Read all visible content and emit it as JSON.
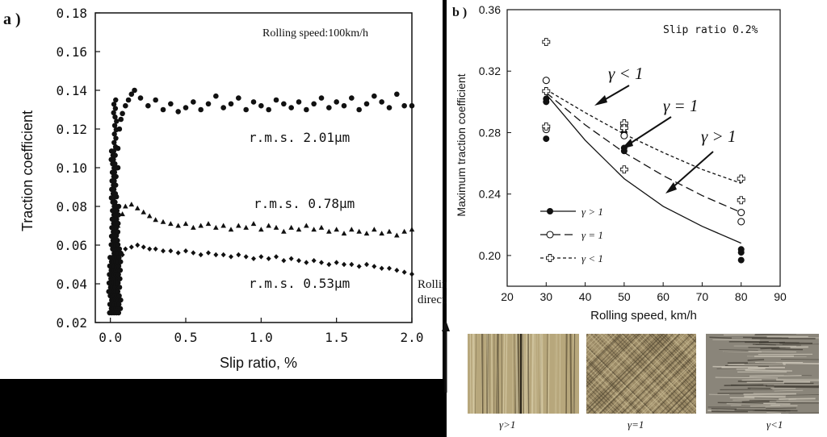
{
  "panel_a": {
    "label": "a )",
    "annotation": "Rolling speed:100km/h",
    "rms_labels": [
      "r.m.s. 2.01μm",
      "r.m.s. 0.78μm",
      "r.m.s. 0.53μm"
    ]
  },
  "panel_b": {
    "label": "b )",
    "annotation": "Slip ratio 0.2%",
    "arrow_labels": [
      "γ < 1",
      "γ = 1",
      "γ > 1"
    ]
  },
  "rolling_direction": [
    "Rolling",
    "direction"
  ],
  "photos": {
    "captions": [
      "γ>1",
      "γ=1",
      "γ<1"
    ],
    "colors": [
      "#b7a77c",
      "#9b8a66",
      "#8a857a"
    ]
  },
  "chart_data": [
    {
      "type": "scatter",
      "title": "",
      "xlabel": "Slip ratio, %",
      "ylabel": "Traction coefficient",
      "xlim": [
        -0.1,
        2.0
      ],
      "ylim": [
        0.02,
        0.18
      ],
      "xticks": [
        "0.0",
        "0.5",
        "1.0",
        "1.5",
        "2.0"
      ],
      "yticks": [
        "0.02",
        "0.04",
        "0.06",
        "0.08",
        "0.10",
        "0.12",
        "0.14",
        "0.16",
        "0.18"
      ],
      "series": [
        {
          "name": "r.m.s. 2.01μm",
          "marker": "circle",
          "points": [
            [
              0.02,
              0.028
            ],
            [
              0.03,
              0.045
            ],
            [
              0.04,
              0.065
            ],
            [
              0.04,
              0.085
            ],
            [
              0.05,
              0.1
            ],
            [
              0.05,
              0.11
            ],
            [
              0.06,
              0.12
            ],
            [
              0.07,
              0.125
            ],
            [
              0.08,
              0.128
            ],
            [
              0.1,
              0.132
            ],
            [
              0.12,
              0.135
            ],
            [
              0.14,
              0.138
            ],
            [
              0.16,
              0.14
            ],
            [
              0.2,
              0.136
            ],
            [
              0.25,
              0.132
            ],
            [
              0.3,
              0.135
            ],
            [
              0.35,
              0.13
            ],
            [
              0.4,
              0.133
            ],
            [
              0.45,
              0.129
            ],
            [
              0.5,
              0.131
            ],
            [
              0.55,
              0.134
            ],
            [
              0.6,
              0.13
            ],
            [
              0.65,
              0.133
            ],
            [
              0.7,
              0.137
            ],
            [
              0.75,
              0.131
            ],
            [
              0.8,
              0.133
            ],
            [
              0.85,
              0.136
            ],
            [
              0.9,
              0.13
            ],
            [
              0.95,
              0.134
            ],
            [
              1.0,
              0.132
            ],
            [
              1.05,
              0.13
            ],
            [
              1.1,
              0.135
            ],
            [
              1.15,
              0.133
            ],
            [
              1.2,
              0.131
            ],
            [
              1.25,
              0.134
            ],
            [
              1.3,
              0.13
            ],
            [
              1.35,
              0.133
            ],
            [
              1.4,
              0.136
            ],
            [
              1.45,
              0.131
            ],
            [
              1.5,
              0.134
            ],
            [
              1.55,
              0.132
            ],
            [
              1.6,
              0.136
            ],
            [
              1.65,
              0.13
            ],
            [
              1.7,
              0.133
            ],
            [
              1.75,
              0.137
            ],
            [
              1.8,
              0.134
            ],
            [
              1.85,
              0.131
            ],
            [
              1.9,
              0.138
            ],
            [
              1.95,
              0.132
            ],
            [
              2.0,
              0.132
            ]
          ]
        },
        {
          "name": "r.m.s. 0.78μm",
          "marker": "triangle",
          "points": [
            [
              0.05,
              0.07
            ],
            [
              0.08,
              0.076
            ],
            [
              0.1,
              0.08
            ],
            [
              0.14,
              0.081
            ],
            [
              0.18,
              0.079
            ],
            [
              0.22,
              0.077
            ],
            [
              0.26,
              0.075
            ],
            [
              0.3,
              0.073
            ],
            [
              0.35,
              0.072
            ],
            [
              0.4,
              0.071
            ],
            [
              0.45,
              0.07
            ],
            [
              0.5,
              0.071
            ],
            [
              0.55,
              0.069
            ],
            [
              0.6,
              0.07
            ],
            [
              0.65,
              0.071
            ],
            [
              0.7,
              0.069
            ],
            [
              0.75,
              0.07
            ],
            [
              0.8,
              0.068
            ],
            [
              0.85,
              0.07
            ],
            [
              0.9,
              0.069
            ],
            [
              0.95,
              0.071
            ],
            [
              1.0,
              0.068
            ],
            [
              1.05,
              0.07
            ],
            [
              1.1,
              0.069
            ],
            [
              1.15,
              0.067
            ],
            [
              1.2,
              0.069
            ],
            [
              1.25,
              0.068
            ],
            [
              1.3,
              0.07
            ],
            [
              1.35,
              0.068
            ],
            [
              1.4,
              0.069
            ],
            [
              1.45,
              0.067
            ],
            [
              1.5,
              0.068
            ],
            [
              1.55,
              0.066
            ],
            [
              1.6,
              0.068
            ],
            [
              1.65,
              0.067
            ],
            [
              1.7,
              0.066
            ],
            [
              1.75,
              0.068
            ],
            [
              1.8,
              0.066
            ],
            [
              1.85,
              0.067
            ],
            [
              1.9,
              0.065
            ],
            [
              1.95,
              0.067
            ],
            [
              2.0,
              0.068
            ]
          ]
        },
        {
          "name": "r.m.s. 0.53μm",
          "marker": "diamond",
          "points": [
            [
              0.05,
              0.05
            ],
            [
              0.08,
              0.055
            ],
            [
              0.1,
              0.058
            ],
            [
              0.14,
              0.059
            ],
            [
              0.18,
              0.06
            ],
            [
              0.22,
              0.059
            ],
            [
              0.26,
              0.058
            ],
            [
              0.3,
              0.058
            ],
            [
              0.35,
              0.057
            ],
            [
              0.4,
              0.057
            ],
            [
              0.45,
              0.056
            ],
            [
              0.5,
              0.057
            ],
            [
              0.55,
              0.056
            ],
            [
              0.6,
              0.055
            ],
            [
              0.65,
              0.056
            ],
            [
              0.7,
              0.055
            ],
            [
              0.75,
              0.055
            ],
            [
              0.8,
              0.054
            ],
            [
              0.85,
              0.055
            ],
            [
              0.9,
              0.054
            ],
            [
              0.95,
              0.053
            ],
            [
              1.0,
              0.054
            ],
            [
              1.05,
              0.053
            ],
            [
              1.1,
              0.054
            ],
            [
              1.15,
              0.052
            ],
            [
              1.2,
              0.053
            ],
            [
              1.25,
              0.052
            ],
            [
              1.3,
              0.051
            ],
            [
              1.35,
              0.052
            ],
            [
              1.4,
              0.051
            ],
            [
              1.45,
              0.05
            ],
            [
              1.5,
              0.051
            ],
            [
              1.55,
              0.05
            ],
            [
              1.6,
              0.05
            ],
            [
              1.65,
              0.049
            ],
            [
              1.7,
              0.05
            ],
            [
              1.75,
              0.049
            ],
            [
              1.8,
              0.048
            ],
            [
              1.85,
              0.048
            ],
            [
              1.9,
              0.047
            ],
            [
              1.95,
              0.046
            ],
            [
              2.0,
              0.045
            ]
          ]
        }
      ]
    },
    {
      "type": "scatter",
      "title": "",
      "xlabel": "Rolling speed, km/h",
      "ylabel": "Maximum traction coefficient",
      "xlim": [
        20,
        90
      ],
      "ylim": [
        0.18,
        0.36
      ],
      "xticks": [
        "20",
        "30",
        "40",
        "50",
        "60",
        "70",
        "80",
        "90"
      ],
      "yticks": [
        "0.20",
        "0.24",
        "0.28",
        "0.32",
        "0.36"
      ],
      "legend_position": "left-bottom",
      "series": [
        {
          "name": "γ > 1",
          "marker": "filled-circle",
          "line": "solid",
          "points": [
            [
              30,
              0.3
            ],
            [
              30,
              0.302
            ],
            [
              30,
              0.276
            ],
            [
              50,
              0.27
            ],
            [
              50,
              0.268
            ],
            [
              50,
              0.28
            ],
            [
              80,
              0.204
            ],
            [
              80,
              0.202
            ],
            [
              80,
              0.197
            ]
          ],
          "curve": [
            [
              30,
              0.305
            ],
            [
              40,
              0.275
            ],
            [
              50,
              0.25
            ],
            [
              60,
              0.232
            ],
            [
              70,
              0.219
            ],
            [
              80,
              0.208
            ]
          ]
        },
        {
          "name": "γ = 1",
          "marker": "open-circle",
          "line": "dash",
          "points": [
            [
              30,
              0.314
            ],
            [
              30,
              0.282
            ],
            [
              50,
              0.284
            ],
            [
              50,
              0.278
            ],
            [
              80,
              0.228
            ],
            [
              80,
              0.222
            ]
          ],
          "curve": [
            [
              30,
              0.306
            ],
            [
              40,
              0.285
            ],
            [
              50,
              0.267
            ],
            [
              60,
              0.252
            ],
            [
              70,
              0.239
            ],
            [
              80,
              0.228
            ]
          ]
        },
        {
          "name": "γ < 1",
          "marker": "open-cross",
          "line": "dot-dash",
          "points": [
            [
              30,
              0.339
            ],
            [
              30,
              0.307
            ],
            [
              30,
              0.284
            ],
            [
              50,
              0.286
            ],
            [
              50,
              0.283
            ],
            [
              50,
              0.256
            ],
            [
              80,
              0.25
            ],
            [
              80,
              0.236
            ]
          ],
          "curve": [
            [
              30,
              0.308
            ],
            [
              40,
              0.293
            ],
            [
              50,
              0.279
            ],
            [
              60,
              0.267
            ],
            [
              70,
              0.256
            ],
            [
              80,
              0.247
            ]
          ]
        }
      ]
    }
  ]
}
